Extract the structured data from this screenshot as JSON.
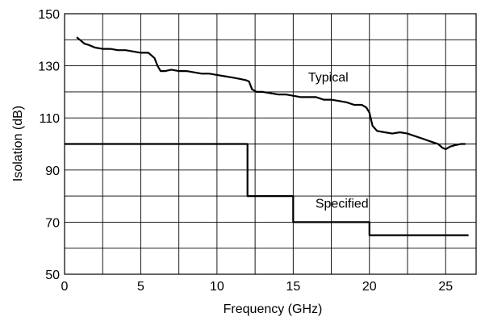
{
  "chart_data": {
    "type": "line",
    "xlabel": "Frequency (GHz)",
    "ylabel": "Isolation (dB)",
    "xlim": [
      0,
      27
    ],
    "ylim": [
      50,
      150
    ],
    "x_ticks": [
      0,
      5,
      10,
      15,
      20,
      25
    ],
    "x_tick_labels": [
      "0",
      "5",
      "10",
      "15",
      "20",
      "25"
    ],
    "y_ticks": [
      50,
      70,
      90,
      110,
      130,
      150
    ],
    "y_tick_labels": [
      "50",
      "70",
      "90",
      "110",
      "130",
      "150"
    ],
    "x_gridlines": [
      0,
      2.5,
      5,
      7.5,
      10,
      12.5,
      15,
      17.5,
      20,
      22.5,
      25,
      27
    ],
    "y_gridlines": [
      50,
      60,
      70,
      80,
      90,
      100,
      110,
      120,
      130,
      140,
      150
    ],
    "grid": true,
    "series": [
      {
        "name": "Typical",
        "x": [
          0.8,
          1.0,
          1.3,
          1.6,
          2.0,
          2.5,
          3.0,
          3.5,
          4.0,
          4.5,
          5.0,
          5.5,
          5.9,
          6.1,
          6.3,
          6.6,
          7.0,
          7.5,
          8.0,
          8.5,
          9.0,
          9.5,
          10.0,
          10.5,
          11.0,
          11.5,
          11.9,
          12.1,
          12.3,
          12.6,
          13.0,
          13.5,
          14.0,
          14.5,
          15.0,
          15.5,
          16.0,
          16.5,
          17.0,
          17.5,
          18.0,
          18.5,
          19.0,
          19.5,
          19.8,
          20.0,
          20.2,
          20.5,
          21.0,
          21.5,
          22.0,
          22.5,
          23.0,
          23.5,
          24.0,
          24.5,
          24.8,
          25.0,
          25.3,
          25.6,
          26.0,
          26.3
        ],
        "y": [
          141,
          140,
          138.5,
          138,
          137,
          136.5,
          136.5,
          136,
          136,
          135.5,
          135,
          135,
          133,
          130,
          128,
          128,
          128.5,
          128,
          128,
          127.5,
          127,
          127,
          126.5,
          126,
          125.5,
          125,
          124.5,
          124,
          121,
          120,
          120,
          119.5,
          119,
          119,
          118.5,
          118,
          118,
          118,
          117,
          117,
          116.5,
          116,
          115,
          115,
          114,
          112,
          107,
          105,
          104.5,
          104,
          104.5,
          104,
          103,
          102,
          101,
          100,
          98.5,
          98,
          99,
          99.5,
          100,
          100
        ]
      },
      {
        "name": "Specified",
        "x": [
          0,
          12,
          12,
          15,
          15,
          20,
          20,
          26.5
        ],
        "y": [
          100,
          100,
          80,
          80,
          70,
          70,
          65,
          65
        ]
      }
    ],
    "annotations": [
      {
        "text": "Typical",
        "x": 17.3,
        "y": 124
      },
      {
        "text": "Specified",
        "x": 18.2,
        "y": 75.5
      }
    ]
  }
}
